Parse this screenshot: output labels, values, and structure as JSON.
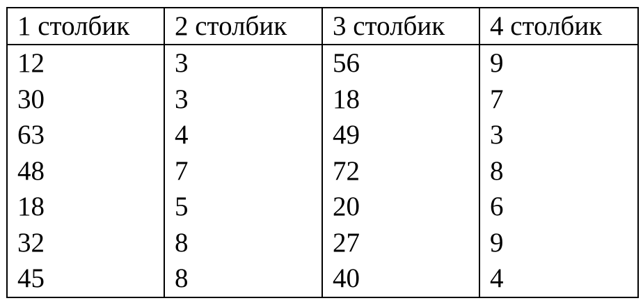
{
  "table": {
    "headers": [
      "1 столбик",
      "2 столбик",
      "3 столбик",
      "4 столбик"
    ],
    "rows": [
      [
        "12",
        "3",
        "56",
        "9"
      ],
      [
        "30",
        "3",
        "18",
        "7"
      ],
      [
        "63",
        "4",
        "49",
        "3"
      ],
      [
        "48",
        "7",
        "72",
        "8"
      ],
      [
        "18",
        "5",
        "20",
        "6"
      ],
      [
        "32",
        "8",
        "27",
        "9"
      ],
      [
        "45",
        "8",
        "40",
        "4"
      ]
    ]
  }
}
